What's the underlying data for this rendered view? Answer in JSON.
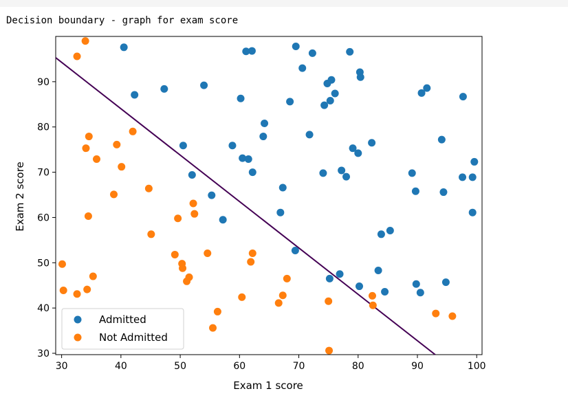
{
  "caption": "Decision boundary - graph for exam score",
  "chart_data": {
    "type": "scatter",
    "title": "",
    "xlabel": "Exam 1 score",
    "ylabel": "Exam 2 score",
    "xlim": [
      29,
      100.9
    ],
    "ylim": [
      29.7,
      100.0
    ],
    "xticks": [
      30,
      40,
      50,
      60,
      70,
      80,
      90,
      100
    ],
    "yticks": [
      30,
      40,
      50,
      60,
      70,
      80,
      90
    ],
    "grid": false,
    "legend_position": "lower-left",
    "series": [
      {
        "name": "Admitted",
        "color": "#1f77b4",
        "points": [
          [
            40.5,
            97.6
          ],
          [
            61.1,
            96.7
          ],
          [
            62.1,
            96.8
          ],
          [
            69.5,
            97.8
          ],
          [
            72.3,
            96.3
          ],
          [
            78.6,
            96.6
          ],
          [
            70.6,
            93.0
          ],
          [
            80.3,
            92.1
          ],
          [
            80.4,
            91.0
          ],
          [
            75.5,
            90.4
          ],
          [
            74.8,
            89.6
          ],
          [
            91.6,
            88.6
          ],
          [
            90.7,
            87.5
          ],
          [
            97.7,
            86.7
          ],
          [
            42.3,
            87.1
          ],
          [
            47.3,
            88.4
          ],
          [
            54.0,
            89.2
          ],
          [
            60.2,
            86.3
          ],
          [
            68.5,
            85.6
          ],
          [
            75.3,
            85.8
          ],
          [
            76.1,
            87.4
          ],
          [
            74.3,
            84.8
          ],
          [
            64.2,
            80.8
          ],
          [
            71.8,
            78.3
          ],
          [
            64.0,
            77.9
          ],
          [
            94.1,
            77.2
          ],
          [
            82.3,
            76.5
          ],
          [
            79.1,
            75.3
          ],
          [
            58.8,
            75.9
          ],
          [
            50.5,
            75.9
          ],
          [
            80.0,
            74.2
          ],
          [
            60.5,
            73.1
          ],
          [
            61.5,
            72.9
          ],
          [
            99.6,
            72.3
          ],
          [
            62.2,
            70.0
          ],
          [
            74.1,
            69.8
          ],
          [
            77.2,
            70.4
          ],
          [
            78.0,
            69.0
          ],
          [
            89.1,
            69.8
          ],
          [
            97.6,
            68.9
          ],
          [
            99.3,
            68.9
          ],
          [
            52.0,
            69.4
          ],
          [
            67.3,
            66.6
          ],
          [
            89.7,
            65.8
          ],
          [
            94.4,
            65.6
          ],
          [
            55.3,
            64.9
          ],
          [
            66.9,
            61.1
          ],
          [
            99.3,
            61.1
          ],
          [
            57.2,
            59.5
          ],
          [
            85.4,
            57.1
          ],
          [
            83.9,
            56.3
          ],
          [
            69.4,
            52.7
          ],
          [
            83.4,
            48.3
          ],
          [
            76.9,
            47.5
          ],
          [
            75.2,
            46.5
          ],
          [
            94.8,
            45.7
          ],
          [
            89.8,
            45.3
          ],
          [
            80.2,
            44.8
          ],
          [
            84.5,
            43.6
          ],
          [
            90.5,
            43.4
          ]
        ]
      },
      {
        "name": "Not Admitted",
        "color": "#ff7f0e",
        "points": [
          [
            34.0,
            99.0
          ],
          [
            32.6,
            95.6
          ],
          [
            42.0,
            79.0
          ],
          [
            34.6,
            77.9
          ],
          [
            34.1,
            75.3
          ],
          [
            35.9,
            72.9
          ],
          [
            39.3,
            76.1
          ],
          [
            40.1,
            71.2
          ],
          [
            44.7,
            66.4
          ],
          [
            38.8,
            65.1
          ],
          [
            52.2,
            63.1
          ],
          [
            52.4,
            60.8
          ],
          [
            49.6,
            59.8
          ],
          [
            34.5,
            60.3
          ],
          [
            45.1,
            56.3
          ],
          [
            49.1,
            51.8
          ],
          [
            54.6,
            52.1
          ],
          [
            62.2,
            52.1
          ],
          [
            30.1,
            49.7
          ],
          [
            50.3,
            49.8
          ],
          [
            50.4,
            48.8
          ],
          [
            61.9,
            50.2
          ],
          [
            35.3,
            47.0
          ],
          [
            51.5,
            46.8
          ],
          [
            51.1,
            45.9
          ],
          [
            68.0,
            46.5
          ],
          [
            30.3,
            43.9
          ],
          [
            32.6,
            43.1
          ],
          [
            34.3,
            44.1
          ],
          [
            60.4,
            42.4
          ],
          [
            67.3,
            42.8
          ],
          [
            66.6,
            41.1
          ],
          [
            75.0,
            41.5
          ],
          [
            82.4,
            42.7
          ],
          [
            82.5,
            40.6
          ],
          [
            56.3,
            39.2
          ],
          [
            93.1,
            38.8
          ],
          [
            95.9,
            38.2
          ],
          [
            55.5,
            35.6
          ],
          [
            75.1,
            30.6
          ]
        ]
      }
    ],
    "decision_boundary": {
      "color": "#440154",
      "points": [
        [
          29,
          95.3
        ],
        [
          93,
          29.7
        ]
      ]
    }
  }
}
